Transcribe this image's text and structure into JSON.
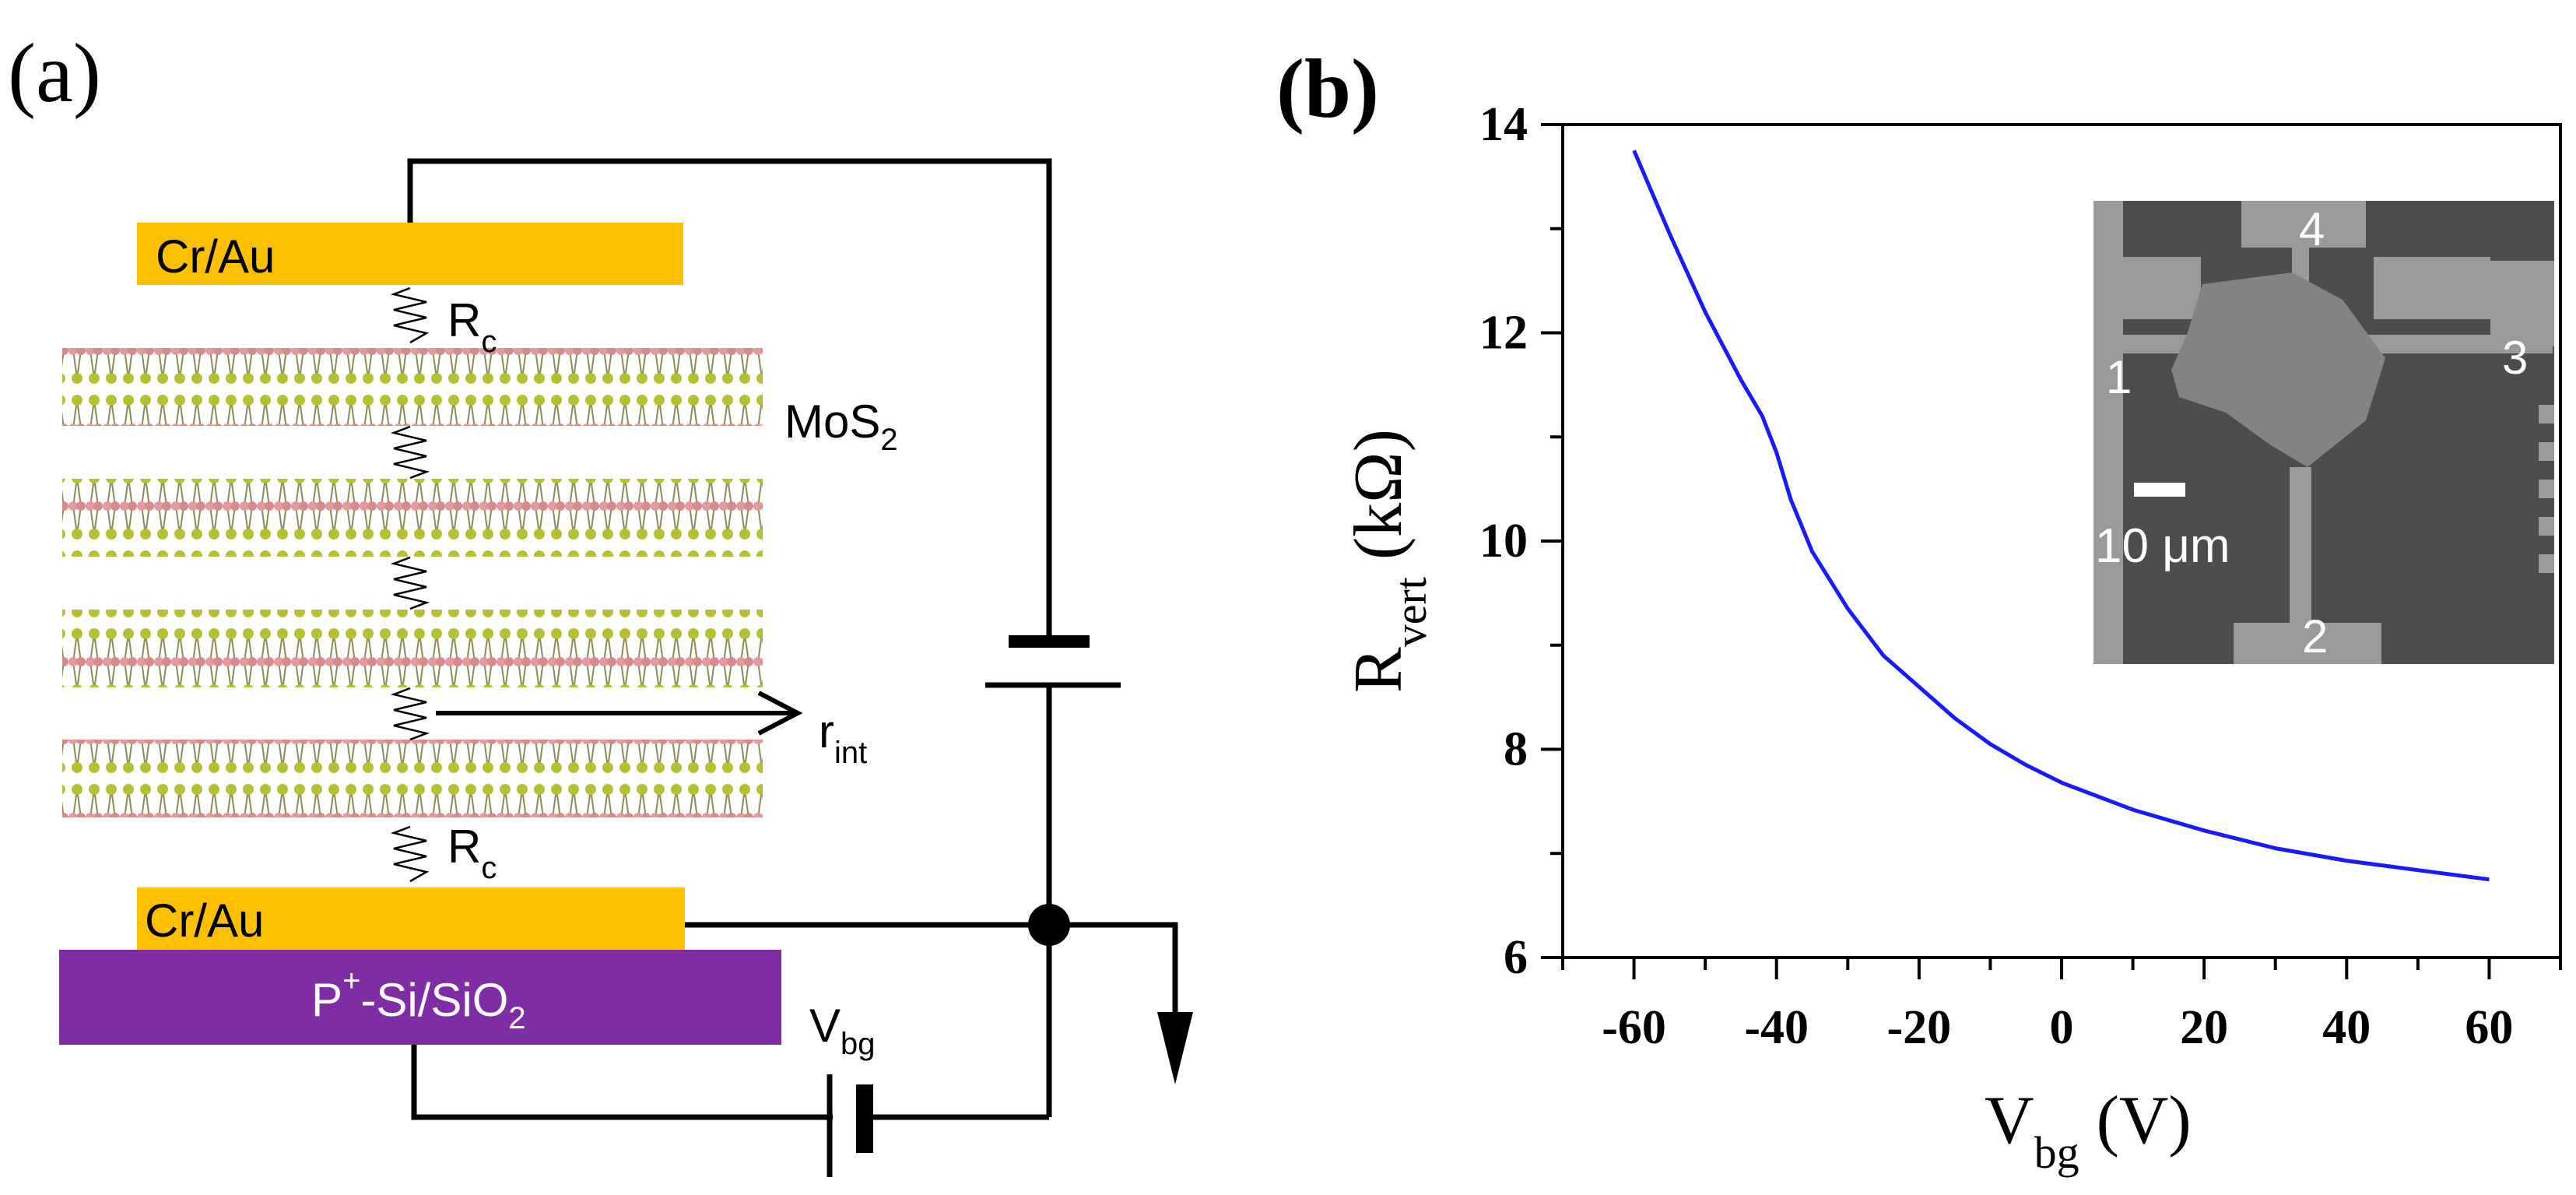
{
  "panel_a": {
    "label": "(a)",
    "top_contact": "Cr/Au",
    "bottom_contact": "Cr/Au",
    "substrate_prefix": "P",
    "substrate_sup": "+",
    "substrate_suffix": "-Si/SiO",
    "substrate_sub": "2",
    "rc_top_main": "R",
    "rc_top_sub": "c",
    "rc_bottom_main": "R",
    "rc_bottom_sub": "c",
    "mos2_main": "MoS",
    "mos2_sub": "2",
    "rint_main": "r",
    "rint_sub": "int",
    "vbg_main": "V",
    "vbg_sub": "bg",
    "colors": {
      "contact": "#fdc000",
      "substrate": "#7f2da4",
      "sulfur": "#b5c133",
      "molybdenum": "#e39a9c",
      "wire": "#000000"
    }
  },
  "panel_b": {
    "label": "(b)",
    "inset": {
      "labels": [
        "1",
        "2",
        "3",
        "4"
      ],
      "scale_text": "10 μm"
    }
  },
  "chart_data": {
    "type": "line",
    "title": "",
    "xlabel_main": "V",
    "xlabel_sub": "bg",
    "xlabel_unit": " (V)",
    "ylabel_main": "R",
    "ylabel_sub": "vert",
    "ylabel_unit": " (kΩ)",
    "xlim": [
      -70,
      70
    ],
    "ylim": [
      6,
      14
    ],
    "xticks": [
      -60,
      -40,
      -20,
      0,
      20,
      40,
      60
    ],
    "xtick_labels": [
      "-60",
      "-40",
      "-20",
      "0",
      "20",
      "40",
      "60"
    ],
    "yticks": [
      6,
      8,
      10,
      12,
      14
    ],
    "ytick_labels": [
      "6",
      "8",
      "10",
      "12",
      "14"
    ],
    "series": [
      {
        "name": "R_vert",
        "color": "#1a1aff",
        "x": [
          -60,
          -55,
          -50,
          -45,
          -42,
          -40,
          -38,
          -35,
          -30,
          -25,
          -20,
          -15,
          -10,
          -5,
          0,
          10,
          20,
          30,
          40,
          50,
          60
        ],
        "y": [
          13.75,
          12.95,
          12.2,
          11.55,
          11.2,
          10.85,
          10.4,
          9.9,
          9.35,
          8.9,
          8.6,
          8.3,
          8.05,
          7.85,
          7.68,
          7.42,
          7.22,
          7.05,
          6.93,
          6.84,
          6.75
        ]
      }
    ]
  }
}
